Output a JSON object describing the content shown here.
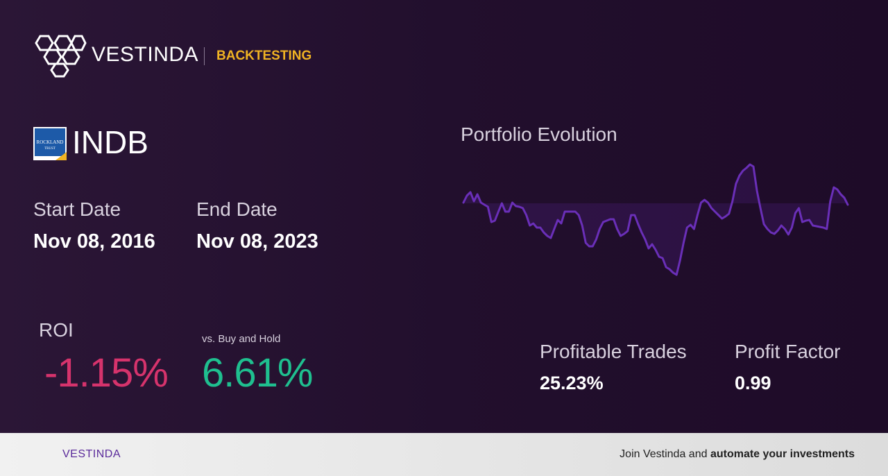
{
  "header": {
    "brand": "VESTINDA",
    "section": "BACKTESTING"
  },
  "asset": {
    "logo_text": [
      "ROCKLAND",
      "TRUST"
    ],
    "ticker": "INDB"
  },
  "dates": {
    "start_label": "Start Date",
    "start": "Nov 08, 2016",
    "end_label": "End Date",
    "end": "Nov 08, 2023"
  },
  "returns": {
    "roi_label": "ROI",
    "roi": "-1.15%",
    "buy_hold_label": "vs. Buy and Hold",
    "buy_hold": "6.61%"
  },
  "stats": {
    "profitable_label": "Profitable Trades",
    "profitable": "25.23%",
    "factor_label": "Profit Factor",
    "factor": "0.99"
  },
  "chart_data": {
    "type": "line",
    "title": "Portfolio Evolution",
    "color": "#6a2fb8",
    "values": [
      0.1,
      1.1,
      1.6,
      0.3,
      1.3,
      0.1,
      -0.2,
      -0.5,
      -2.7,
      -2.5,
      -1.2,
      0,
      -1.2,
      -1.2,
      0.1,
      -0.4,
      -0.5,
      -0.7,
      -1.7,
      -3.2,
      -2.9,
      -3.5,
      -3.5,
      -4.2,
      -4.7,
      -5,
      -3.7,
      -2.4,
      -2.9,
      -1.2,
      -1.2,
      -1.2,
      -1.2,
      -1.7,
      -3.2,
      -5.7,
      -6.2,
      -6.2,
      -5.2,
      -3.7,
      -2.7,
      -2.5,
      -2.3,
      -2.3,
      -3.7,
      -4.7,
      -4.4,
      -4,
      -1.7,
      -1.7,
      -3,
      -4.2,
      -5.2,
      -6.5,
      -5.9,
      -6.7,
      -7.7,
      -7.9,
      -9.2,
      -9.5,
      -10,
      -10.3,
      -8.2,
      -5.7,
      -3.5,
      -3.1,
      -3.7,
      -1.7,
      0.1,
      0.5,
      0.1,
      -0.7,
      -1.2,
      -1.7,
      -2.2,
      -1.9,
      -1.5,
      0.3,
      2.8,
      4,
      4.7,
      5.1,
      5.6,
      5.3,
      1.8,
      -0.7,
      -3,
      -3.7,
      -4.2,
      -4.4,
      -3.9,
      -3.2,
      -3.7,
      -4.5,
      -3.5,
      -1.4,
      -0.7,
      -2.7,
      -2.5,
      -2.4,
      -3.2,
      -3.3,
      -3.4,
      -3.5,
      -3.7,
      0.3,
      2.3,
      2,
      1.3,
      0.8,
      -0.2
    ],
    "ylim": [
      -11,
      6
    ]
  },
  "footer": {
    "brand": "VESTINDA",
    "cta_plain": "Join Vestinda and ",
    "cta_bold": "automate your investments"
  }
}
